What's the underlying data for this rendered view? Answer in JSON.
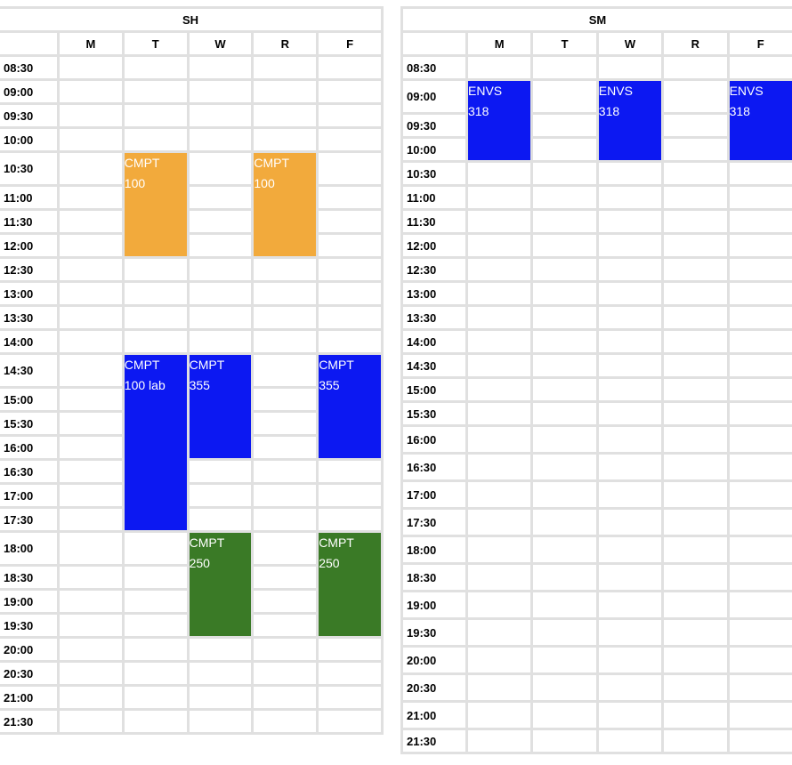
{
  "colors": {
    "orange": "#f2aa3c",
    "blue": "#0c18f2",
    "green": "#3a7a26",
    "grid": "#e0e0e0"
  },
  "days": [
    "M",
    "T",
    "W",
    "R",
    "F"
  ],
  "sh": {
    "title": "SH",
    "times": [
      "08:30",
      "09:00",
      "09:30",
      "10:00",
      "10:30",
      "11:00",
      "11:30",
      "12:00",
      "12:30",
      "13:00",
      "13:30",
      "14:00",
      "14:30",
      "15:00",
      "15:30",
      "16:00",
      "16:30",
      "17:00",
      "17:30",
      "18:00",
      "18:30",
      "19:00",
      "19:30",
      "20:00",
      "20:30",
      "21:00",
      "21:30"
    ],
    "events": [
      {
        "day": 1,
        "start": 4,
        "span": 4,
        "line1": "CMPT",
        "line2": "100",
        "color": "#f2aa3c"
      },
      {
        "day": 3,
        "start": 4,
        "span": 4,
        "line1": "CMPT",
        "line2": "100",
        "color": "#f2aa3c"
      },
      {
        "day": 1,
        "start": 12,
        "span": 7,
        "line1": "CMPT",
        "line2": "100 lab",
        "color": "#0c18f2"
      },
      {
        "day": 2,
        "start": 12,
        "span": 4,
        "line1": "CMPT",
        "line2": "355",
        "color": "#0c18f2"
      },
      {
        "day": 4,
        "start": 12,
        "span": 4,
        "line1": "CMPT",
        "line2": "355",
        "color": "#0c18f2"
      },
      {
        "day": 2,
        "start": 19,
        "span": 4,
        "line1": "CMPT",
        "line2": "250",
        "color": "#3a7a26"
      },
      {
        "day": 4,
        "start": 19,
        "span": 4,
        "line1": "CMPT",
        "line2": "250",
        "color": "#3a7a26"
      }
    ]
  },
  "sm": {
    "title": "SM",
    "times": [
      "08:30",
      "09:00",
      "09:30",
      "10:00",
      "10:30",
      "11:00",
      "11:30",
      "12:00",
      "12:30",
      "13:00",
      "13:30",
      "14:00",
      "14:30",
      "15:00",
      "15:30",
      "16:00",
      "16:30",
      "17:00",
      "17:30",
      "18:00",
      "18:30",
      "19:00",
      "19:30",
      "20:00",
      "20:30",
      "21:00",
      "21:30"
    ],
    "events": [
      {
        "day": 0,
        "start": 1,
        "span": 3,
        "line1": "ENVS",
        "line2": "318",
        "color": "#0c18f2"
      },
      {
        "day": 2,
        "start": 1,
        "span": 3,
        "line1": "ENVS",
        "line2": "318",
        "color": "#0c18f2"
      },
      {
        "day": 4,
        "start": 1,
        "span": 3,
        "line1": "ENVS",
        "line2": "318",
        "color": "#0c18f2"
      }
    ]
  }
}
